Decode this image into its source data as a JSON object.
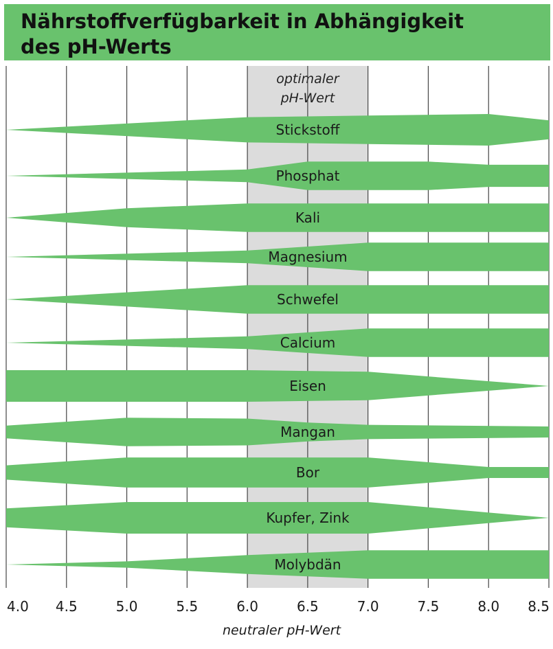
{
  "chart_data": {
    "type": "area",
    "title": "Nährstoffverfügbarkeit in Abhängigkeit des pH-Werts",
    "title_lines": [
      "Nährstoffverfügbarkeit in Abhängigkeit",
      "des pH-Werts"
    ],
    "xlabel": "neutraler pH-Wert",
    "xlim": [
      4.0,
      8.5
    ],
    "xticks": [
      "4.0",
      "4.5",
      "5.0",
      "5.5",
      "6.0",
      "6.5",
      "7.0",
      "7.5",
      "8.0",
      "8.5"
    ],
    "highlight": {
      "range": [
        6.0,
        7.0
      ],
      "label_lines": [
        "optimaler",
        "pH-Wert"
      ]
    },
    "series": [
      {
        "name": "Stickstoff",
        "x": [
          4.0,
          6.0,
          7.0,
          8.0,
          8.5
        ],
        "width": [
          0.0,
          0.8,
          0.9,
          1.0,
          0.6
        ]
      },
      {
        "name": "Phosphat",
        "x": [
          4.0,
          6.0,
          6.5,
          7.5,
          8.0,
          8.5
        ],
        "width": [
          0.0,
          0.4,
          0.9,
          0.9,
          0.7,
          0.7
        ]
      },
      {
        "name": "Kali",
        "x": [
          4.0,
          5.0,
          6.0,
          8.5
        ],
        "width": [
          0.0,
          0.6,
          0.9,
          0.9
        ]
      },
      {
        "name": "Magnesium",
        "x": [
          4.0,
          6.0,
          7.0,
          8.5
        ],
        "width": [
          0.0,
          0.4,
          0.9,
          0.9
        ]
      },
      {
        "name": "Schwefel",
        "x": [
          4.0,
          6.0,
          8.5
        ],
        "width": [
          0.0,
          0.9,
          0.9
        ]
      },
      {
        "name": "Calcium",
        "x": [
          4.0,
          6.0,
          7.0,
          8.5
        ],
        "width": [
          0.0,
          0.4,
          0.9,
          0.9
        ]
      },
      {
        "name": "Eisen",
        "x": [
          4.0,
          6.0,
          7.0,
          8.5
        ],
        "width": [
          1.0,
          1.0,
          0.9,
          0.0
        ]
      },
      {
        "name": "Mangan",
        "x": [
          4.0,
          5.0,
          6.0,
          6.5,
          7.0,
          8.5
        ],
        "width": [
          0.4,
          0.9,
          0.85,
          0.6,
          0.45,
          0.35
        ]
      },
      {
        "name": "Bor",
        "x": [
          4.0,
          5.0,
          7.0,
          8.0,
          8.5
        ],
        "width": [
          0.45,
          0.95,
          0.95,
          0.35,
          0.35
        ]
      },
      {
        "name": "Kupfer, Zink",
        "x": [
          4.0,
          5.0,
          7.0,
          8.5
        ],
        "width": [
          0.6,
          1.0,
          1.0,
          0.0
        ]
      },
      {
        "name": "Molybdän",
        "x": [
          4.0,
          5.0,
          6.0,
          7.0,
          8.5
        ],
        "width": [
          0.0,
          0.2,
          0.6,
          0.9,
          0.9
        ]
      }
    ],
    "grid": true,
    "colors": {
      "band": "#69c26d",
      "title_bar": "#69c26d",
      "highlight": "#dcdcdc",
      "grid": "#444444"
    }
  }
}
